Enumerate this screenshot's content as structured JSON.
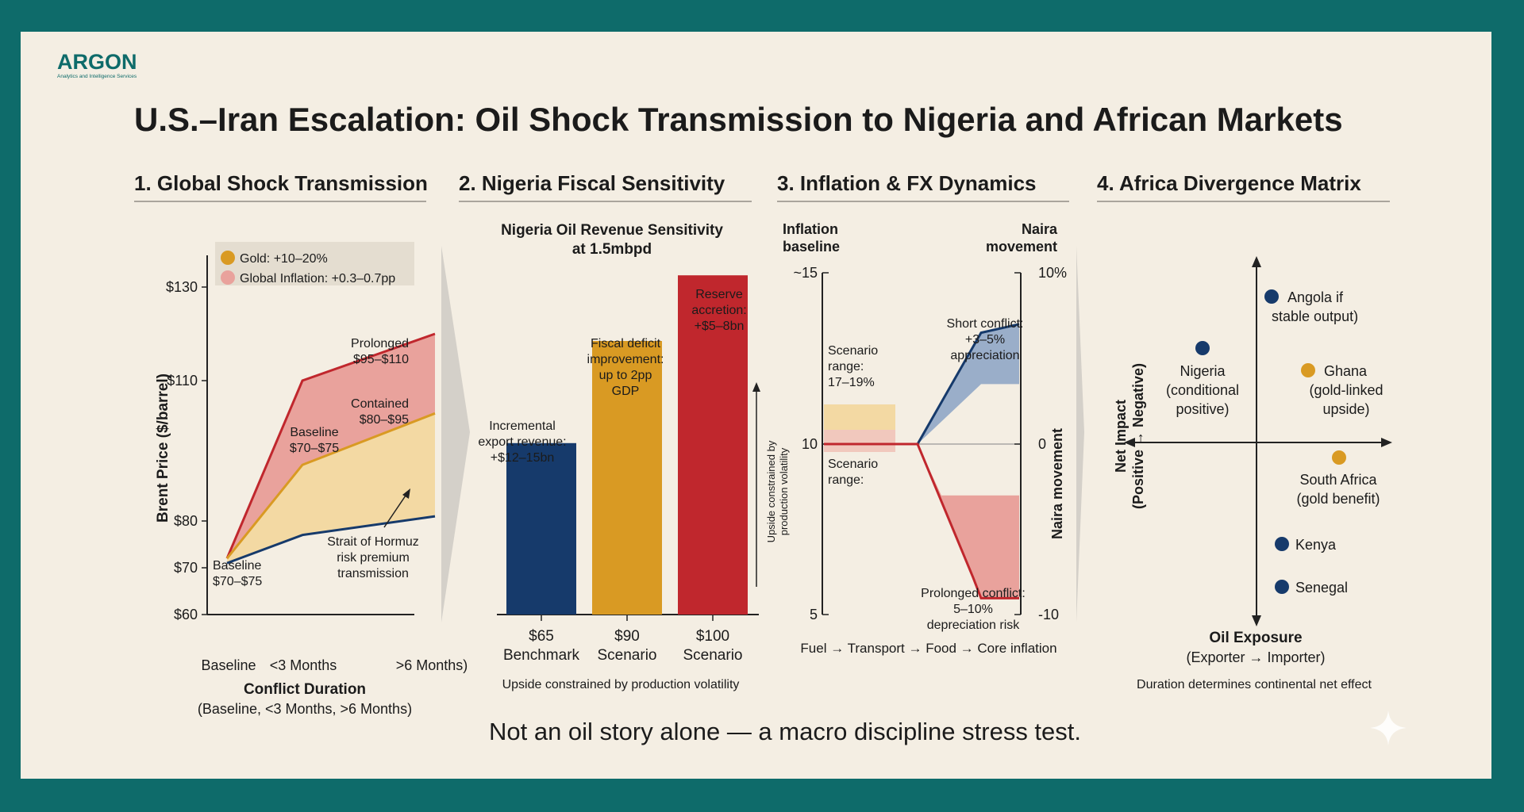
{
  "logo": {
    "name": "ARGON",
    "tagline": "Analytics and Intelligence Services"
  },
  "title": "U.S.–Iran Escalation: Oil Shock Transmission to Nigeria and African Markets",
  "footer": "Not an oil story alone — a macro discipline stress test.",
  "colors": {
    "background": "#0e6b6a",
    "card": "#f4eee3",
    "navy": "#163a6b",
    "gold": "#d99a23",
    "red": "#c0272d",
    "pink": "#e9a29c",
    "tan": "#f3d9a3"
  },
  "sections": {
    "s1": "1. Global Shock Transmission",
    "s2": "2. Nigeria Fiscal Sensitivity",
    "s3": "3. Inflation & FX Dynamics",
    "s4": "4. Africa Divergence Matrix"
  },
  "panel1": {
    "legend": [
      "Gold: +10–20%",
      "Global Inflation: +0.3–0.7pp"
    ],
    "ylabel": "Brent Price ($/barrel)",
    "xlabel": "Conflict Duration",
    "xsub": "(Baseline, <3 Months, >6 Months)",
    "labels": {
      "prolonged1": "Prolonged",
      "prolonged2": "$95–$110",
      "contained1": "Contained",
      "contained2": "$80–$95",
      "baseline1": "Baseline",
      "baseline2": "$70–$75",
      "baselineLow1": "Baseline",
      "baselineLow2": "$70–$75",
      "hormuz1": "Strait of Hormuz",
      "hormuz2": "risk premium",
      "hormuz3": "transmission"
    }
  },
  "panel2": {
    "title1": "Nigeria Oil Revenue Sensitivity",
    "title2": "at 1.5mbpd",
    "side1": "Upside constrained by",
    "side2": "production volatility",
    "note": "Upside constrained by production volatility",
    "ann": {
      "a1": "Incremental",
      "a2": "export revenue:",
      "a3": "+$12–15bn",
      "b1": "Fiscal deficit",
      "b2": "improvement:",
      "b3": "up to 2pp",
      "b4": "GDP",
      "c1": "Reserve",
      "c2": "accretion:",
      "c3": "+$5–8bn"
    }
  },
  "panel3": {
    "leftHead1": "Inflation",
    "leftHead2": "baseline",
    "rightHead1": "Naira",
    "rightHead2": "movement",
    "rightAxis": "Naira movement",
    "scenario1a": "Scenario",
    "scenario1b": "range:",
    "scenario1c": "17–19%",
    "scenario2a": "Scenario",
    "scenario2b": "range:",
    "short1": "Short conflict:",
    "short2": "+3–5%",
    "short3": "appreciation",
    "prol1": "Prolonged conflict:",
    "prol2": "5–10%",
    "prol3": "depreciation risk",
    "chain": "Fuel → Transport → Food → Core inflation"
  },
  "panel4": {
    "yaxis1": "Net Impact",
    "yaxis2": "(Positive → Negative)",
    "xaxis1": "Oil Exposure",
    "xaxis2": "(Exporter → Importer)",
    "note": "Duration determines continental net effect",
    "points": [
      {
        "l1": "Angola if",
        "l2": "stable output)",
        "color": "#163a6b"
      },
      {
        "l1": "Nigeria",
        "l2": "(conditional",
        "l3": "positive)",
        "color": "#163a6b"
      },
      {
        "l1": "Ghana",
        "l2": "(gold-linked",
        "l3": "upside)",
        "color": "#d99a23"
      },
      {
        "l1": "South Africa",
        "l2": "(gold benefit)",
        "color": "#d99a23"
      },
      {
        "l1": "Kenya",
        "color": "#163a6b"
      },
      {
        "l1": "Senegal",
        "color": "#163a6b"
      }
    ]
  },
  "chart_data": [
    {
      "type": "area",
      "x": [
        "Baseline",
        "<3 Months",
        ">6 Months)"
      ],
      "ylim": [
        60,
        130
      ],
      "yticks": [
        "$130",
        "$110",
        "$80",
        "$70",
        "$60"
      ],
      "series": [
        {
          "name": "Prolonged",
          "values": [
            72,
            110,
            120
          ]
        },
        {
          "name": "Contained",
          "values": [
            72,
            92,
            103
          ]
        },
        {
          "name": "Baseline",
          "values": [
            71,
            77,
            81
          ]
        }
      ]
    },
    {
      "type": "bar",
      "categories": [
        "$65|Benchmark",
        "$90|Scenario",
        "$100|Scenario"
      ],
      "values": [
        47,
        75,
        93
      ],
      "colors": [
        "#163a6b",
        "#d99a23",
        "#c0272d"
      ]
    },
    {
      "type": "line",
      "left_ticks": [
        "~15",
        "10",
        "5"
      ],
      "right_ticks": [
        "10%",
        "0",
        "-10"
      ],
      "series": [
        {
          "values": [
            0,
            0,
            6.5,
            7
          ]
        },
        {
          "values": [
            0,
            0,
            -9,
            -9
          ]
        }
      ]
    }
  ]
}
